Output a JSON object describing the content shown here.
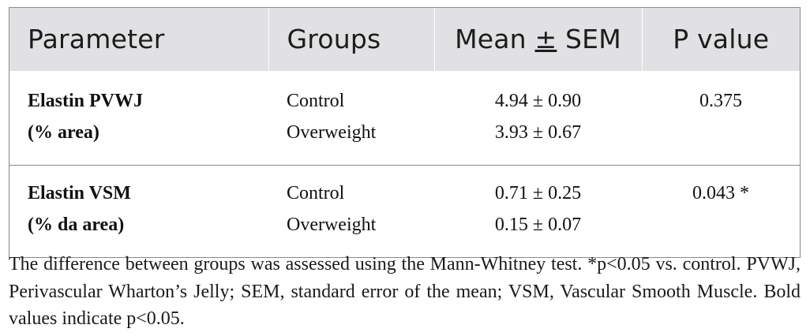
{
  "table": {
    "headers": {
      "parameter": "Parameter",
      "groups": "Groups",
      "mean_sem_symbol": "±",
      "mean_sem_prefix": "Mean ",
      "mean_sem_suffix": " SEM",
      "p_value": "P value"
    },
    "rows": [
      {
        "parameter_line1": "Elastin PVWJ",
        "parameter_line2": "(% area)",
        "group1": "Control",
        "group2": "Overweight",
        "value1": "4.94 ± 0.90",
        "value2": "3.93 ± 0.67",
        "p_value": "0.375"
      },
      {
        "parameter_line1": "Elastin VSM",
        "parameter_line2": "(% da area)",
        "group1": "Control",
        "group2": "Overweight",
        "value1": "0.71 ± 0.25",
        "value2": "0.15 ± 0.07",
        "p_value": "0.043 *"
      }
    ]
  },
  "footnote": "The difference between groups was assessed using the Mann-Whitney test. *p<0.05 vs. control. PVWJ, Perivascular Wharton’s Jelly; SEM, standard error of the mean; VSM, Vascular Smooth Muscle. Bold values indicate p<0.05."
}
